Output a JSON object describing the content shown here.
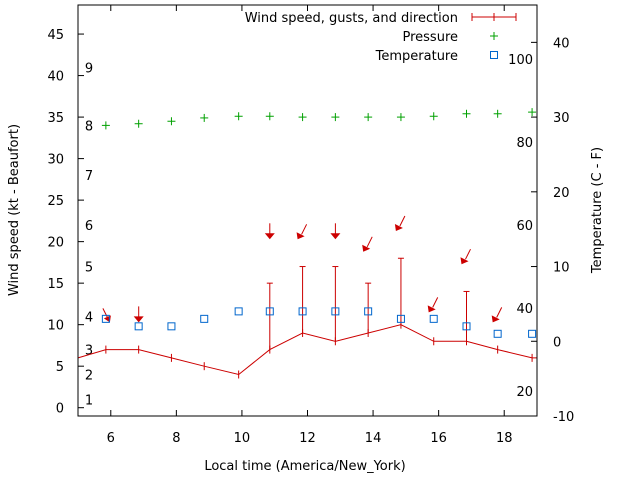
{
  "chart_data": {
    "type": "line",
    "xlabel": "Local time (America/New_York)",
    "ylabel_left": "Wind speed (kt - Beaufort)",
    "ylabel_right": "Temperature (C - F)",
    "xlim": [
      5,
      19
    ],
    "ylim_left": [
      -1,
      48.5
    ],
    "ylim_right_c": [
      -10,
      45
    ],
    "x_ticks": [
      6,
      8,
      10,
      12,
      14,
      16,
      18
    ],
    "y_ticks_left": [
      0,
      5,
      10,
      15,
      20,
      25,
      30,
      35,
      40,
      45
    ],
    "y_ticks_right_c": [
      -10,
      0,
      10,
      20,
      30,
      40
    ],
    "fahrenheit_labels": [
      20,
      40,
      60,
      80,
      100
    ],
    "beaufort_labels": [
      1,
      2,
      3,
      4,
      5,
      6,
      7,
      8,
      9
    ],
    "legend": [
      {
        "label": "Wind speed, gusts, and direction",
        "color": "#cc0000"
      },
      {
        "label": "Pressure",
        "color": "#00a000"
      },
      {
        "label": "Temperature",
        "color": "#0066cc"
      }
    ],
    "legend_position": "top-right",
    "wind": {
      "x": [
        5,
        5.85,
        6.85,
        7.85,
        8.85,
        9.9,
        10.85,
        11.85,
        12.85,
        13.85,
        14.85,
        15.85,
        16.85,
        17.8,
        18.85,
        19
      ],
      "speed": [
        6,
        7,
        7,
        6,
        5,
        4,
        7,
        9,
        8,
        9,
        10,
        8,
        8,
        7,
        6,
        6
      ],
      "gust": [
        null,
        null,
        null,
        null,
        null,
        null,
        15,
        17,
        17,
        15,
        18,
        null,
        14,
        null,
        null,
        null
      ]
    },
    "wind_direction_arrows": [
      {
        "x": 5.85,
        "type": "nw"
      },
      {
        "x": 6.85,
        "type": "down"
      },
      {
        "x": 10.85,
        "type": "down"
      },
      {
        "x": 11.85,
        "type": "ne"
      },
      {
        "x": 12.85,
        "type": "down"
      },
      {
        "x": 13.85,
        "type": "ne"
      },
      {
        "x": 14.85,
        "type": "ne"
      },
      {
        "x": 15.85,
        "type": "ne"
      },
      {
        "x": 16.85,
        "type": "ne"
      },
      {
        "x": 17.8,
        "type": "ne"
      }
    ],
    "pressure": {
      "x": [
        5.85,
        6.85,
        7.85,
        8.85,
        9.9,
        10.85,
        11.85,
        12.85,
        13.85,
        14.85,
        15.85,
        16.85,
        17.8,
        18.85
      ],
      "y": [
        34,
        34.2,
        34.5,
        34.9,
        35.1,
        35.1,
        35.0,
        35.0,
        35.0,
        35.0,
        35.1,
        35.4,
        35.4,
        35.6
      ]
    },
    "temperature": {
      "x": [
        5.85,
        6.85,
        7.85,
        8.85,
        9.9,
        10.85,
        11.85,
        12.85,
        13.85,
        14.85,
        15.85,
        16.85,
        17.8,
        18.85
      ],
      "c": [
        3,
        2,
        2,
        3,
        4,
        4,
        4,
        4,
        4,
        3,
        3,
        2,
        1,
        1
      ]
    }
  }
}
